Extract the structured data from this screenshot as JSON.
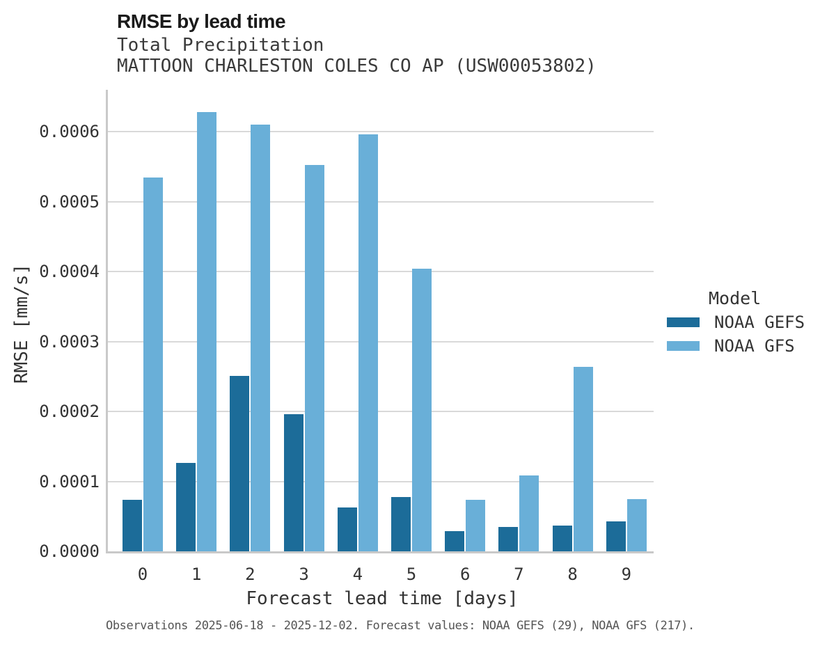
{
  "chart_data": {
    "type": "bar",
    "title": "RMSE by lead time",
    "subtitle": "Total Precipitation",
    "station": "MATTOON CHARLESTON COLES CO AP (USW00053802)",
    "xlabel": "Forecast lead time [days]",
    "ylabel": "RMSE [mm/s]",
    "categories": [
      "0",
      "1",
      "2",
      "3",
      "4",
      "5",
      "6",
      "7",
      "8",
      "9"
    ],
    "series": [
      {
        "name": "NOAA GEFS",
        "color": "#1c6c99",
        "values": [
          7.4e-05,
          0.000126,
          0.000251,
          0.000196,
          6.3e-05,
          7.8e-05,
          2.9e-05,
          3.5e-05,
          3.7e-05,
          4.3e-05
        ]
      },
      {
        "name": "NOAA GFS",
        "color": "#69afd8",
        "values": [
          0.000535,
          0.000628,
          0.00061,
          0.000553,
          0.000596,
          0.000404,
          7.4e-05,
          0.000109,
          0.000264,
          7.5e-05
        ]
      }
    ],
    "ylim": [
      0,
      0.00066
    ],
    "ytick_values": [
      0,
      0.0001,
      0.0002,
      0.0003,
      0.0004,
      0.0005,
      0.0006
    ],
    "ytick_labels": [
      "0.0000",
      "0.0001",
      "0.0002",
      "0.0003",
      "0.0004",
      "0.0005",
      "0.0006"
    ],
    "grid": true,
    "legend_title": "Model",
    "legend_position": "right",
    "caption": "Observations 2025-06-18 - 2025-12-02. Forecast values: NOAA GEFS (29), NOAA GFS (217)."
  }
}
